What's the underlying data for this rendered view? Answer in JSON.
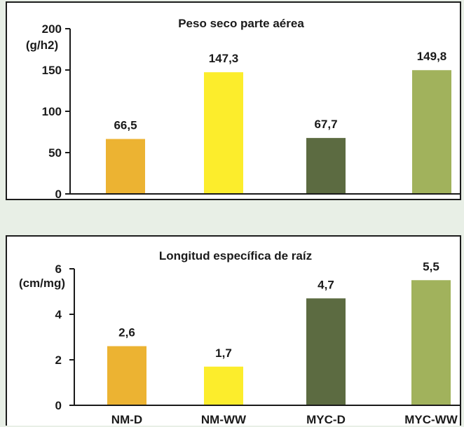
{
  "chart_data": [
    {
      "type": "bar",
      "title": "Peso seco parte aérea",
      "ylabel": "(g/h2)",
      "categories": [
        "NM/D",
        "NM/WW",
        "MYC/D",
        "MYC/WW"
      ],
      "values": [
        66.5,
        147.3,
        67.7,
        149.8
      ],
      "value_labels": [
        "66,5",
        "147,3",
        "67,7",
        "149,8"
      ],
      "colors": [
        "#ecb332",
        "#fced2c",
        "#5c6b41",
        "#a1b25c"
      ],
      "ylim": [
        0,
        200
      ],
      "yticks": [
        0,
        50,
        100,
        150,
        200
      ],
      "ytick_labels": [
        "0",
        "50",
        "100",
        "150",
        "200"
      ],
      "grid": false,
      "legend": "none"
    },
    {
      "type": "bar",
      "title": "Longitud específica de raíz",
      "ylabel": "(cm/mg)",
      "categories": [
        "NM-D",
        "NM-WW",
        "MYC-D",
        "MYC-WW"
      ],
      "values": [
        2.6,
        1.7,
        4.7,
        5.5
      ],
      "value_labels": [
        "2,6",
        "1,7",
        "4,7",
        "5,5"
      ],
      "colors": [
        "#ecb332",
        "#fced2c",
        "#5c6b41",
        "#a1b25c"
      ],
      "ylim": [
        0,
        6
      ],
      "yticks": [
        0,
        2,
        4,
        6
      ],
      "ytick_labels": [
        "0",
        "2",
        "4",
        "6"
      ],
      "grid": false,
      "legend": "none"
    }
  ]
}
